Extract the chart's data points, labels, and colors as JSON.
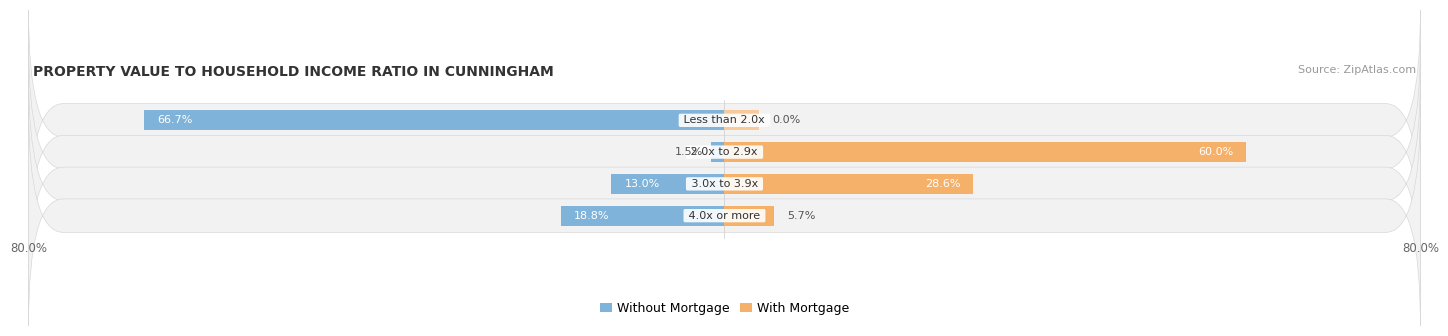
{
  "title": "PROPERTY VALUE TO HOUSEHOLD INCOME RATIO IN CUNNINGHAM",
  "source": "Source: ZipAtlas.com",
  "categories": [
    "Less than 2.0x",
    "2.0x to 2.9x",
    "3.0x to 3.9x",
    "4.0x or more"
  ],
  "without_mortgage": [
    66.7,
    1.5,
    13.0,
    18.8
  ],
  "with_mortgage": [
    0.0,
    60.0,
    28.6,
    5.7
  ],
  "color_without": "#7fb3d9",
  "color_with": "#f5b06a",
  "color_with_light": "#f8c99a",
  "bar_bg_color": "#f2f2f2",
  "bar_border_color": "#d8d8d8",
  "xlim_left": -80.0,
  "xlim_right": 80.0,
  "x_tick_labels": [
    "80.0%",
    "80.0%"
  ],
  "title_fontsize": 10,
  "source_fontsize": 8,
  "value_fontsize": 8,
  "category_fontsize": 8,
  "legend_fontsize": 9,
  "bar_height": 0.62
}
